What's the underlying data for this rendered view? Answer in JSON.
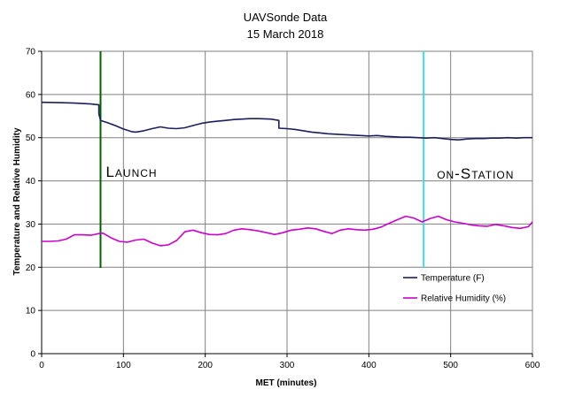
{
  "chart_data": {
    "type": "line",
    "title": "UAVSonde Data",
    "subtitle": "15 March 2018",
    "xlabel": "MET (minutes)",
    "ylabel": "Temperature and Relative Humidity",
    "xlim": [
      0,
      600
    ],
    "ylim": [
      0,
      70
    ],
    "x_ticks": [
      "0",
      "100",
      "200",
      "300",
      "400",
      "500",
      "600"
    ],
    "y_ticks": [
      "0",
      "10",
      "20",
      "30",
      "40",
      "50",
      "60",
      "70"
    ],
    "grid": true,
    "legend_position": "bottom-right",
    "series": [
      {
        "name": "Temperature (F)",
        "color": "#1a1f5c",
        "x": [
          0,
          20,
          40,
          60,
          70,
          70,
          72,
          80,
          90,
          100,
          110,
          115,
          125,
          135,
          145,
          155,
          165,
          175,
          185,
          195,
          205,
          215,
          225,
          235,
          245,
          255,
          265,
          280,
          290,
          290,
          300,
          310,
          320,
          330,
          340,
          350,
          360,
          370,
          380,
          390,
          400,
          410,
          420,
          430,
          440,
          450,
          460,
          470,
          480,
          490,
          500,
          510,
          520,
          530,
          540,
          550,
          560,
          570,
          580,
          590,
          600
        ],
        "values": [
          58.2,
          58.1,
          58.0,
          57.8,
          57.6,
          55.5,
          54.0,
          53.5,
          52.8,
          52.0,
          51.4,
          51.3,
          51.6,
          52.1,
          52.5,
          52.2,
          52.1,
          52.3,
          52.8,
          53.3,
          53.6,
          53.8,
          54.0,
          54.2,
          54.3,
          54.4,
          54.4,
          54.3,
          54.0,
          52.2,
          52.1,
          51.9,
          51.6,
          51.3,
          51.1,
          50.9,
          50.8,
          50.7,
          50.6,
          50.5,
          50.4,
          50.5,
          50.3,
          50.2,
          50.1,
          50.1,
          50.0,
          49.9,
          50.0,
          49.8,
          49.6,
          49.5,
          49.7,
          49.8,
          49.8,
          49.9,
          49.9,
          50.0,
          49.9,
          50.0,
          50.0
        ]
      },
      {
        "name": "Relative Humidity (%)",
        "color": "#cc00cc",
        "x": [
          0,
          10,
          20,
          30,
          40,
          50,
          60,
          70,
          75,
          85,
          95,
          105,
          115,
          125,
          135,
          145,
          155,
          165,
          175,
          185,
          195,
          205,
          215,
          225,
          235,
          245,
          255,
          265,
          275,
          285,
          295,
          305,
          315,
          325,
          335,
          345,
          355,
          365,
          375,
          385,
          395,
          405,
          415,
          425,
          435,
          445,
          455,
          465,
          475,
          485,
          495,
          505,
          515,
          525,
          535,
          545,
          555,
          565,
          575,
          585,
          595,
          600
        ],
        "values": [
          26.0,
          26.0,
          26.1,
          26.5,
          27.5,
          27.5,
          27.4,
          27.8,
          27.9,
          26.8,
          26.0,
          25.8,
          26.3,
          26.5,
          25.6,
          25.0,
          25.2,
          26.2,
          28.2,
          28.6,
          28.0,
          27.6,
          27.5,
          27.8,
          28.6,
          28.9,
          28.7,
          28.4,
          28.0,
          27.6,
          28.0,
          28.6,
          28.8,
          29.1,
          28.9,
          28.3,
          27.8,
          28.6,
          28.9,
          28.7,
          28.6,
          28.8,
          29.3,
          30.2,
          31.0,
          31.8,
          31.4,
          30.5,
          31.3,
          31.8,
          31.0,
          30.5,
          30.2,
          29.8,
          29.6,
          29.5,
          29.9,
          29.6,
          29.2,
          29.0,
          29.4,
          30.5
        ]
      }
    ],
    "vertical_markers": [
      {
        "label": "Launch",
        "x": 72,
        "color": "#006400"
      },
      {
        "label": "on-Station",
        "x": 467,
        "color": "#40d8e8"
      }
    ]
  }
}
